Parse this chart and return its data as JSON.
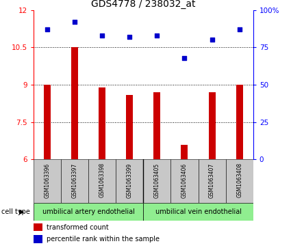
{
  "title": "GDS4778 / 238032_at",
  "samples": [
    "GSM1063396",
    "GSM1063397",
    "GSM1063398",
    "GSM1063399",
    "GSM1063405",
    "GSM1063406",
    "GSM1063407",
    "GSM1063408"
  ],
  "transformed_counts": [
    9.0,
    10.5,
    8.9,
    8.6,
    8.7,
    6.6,
    8.7,
    9.0
  ],
  "percentile_ranks": [
    87,
    92,
    83,
    82,
    83,
    68,
    80,
    87
  ],
  "ylim_left": [
    6,
    12
  ],
  "ylim_right": [
    0,
    100
  ],
  "yticks_left": [
    6,
    7.5,
    9,
    10.5,
    12
  ],
  "yticks_right": [
    0,
    25,
    50,
    75,
    100
  ],
  "ytick_labels_right": [
    "0",
    "25",
    "50",
    "75",
    "100%"
  ],
  "bar_color": "#cc0000",
  "scatter_color": "#0000cc",
  "bar_width": 0.25,
  "grid_dotted_values": [
    7.5,
    9.0,
    10.5
  ],
  "cell_type_groups": [
    {
      "label": "umbilical artery endothelial",
      "indices": [
        0,
        3
      ],
      "color": "#90ee90"
    },
    {
      "label": "umbilical vein endothelial",
      "indices": [
        4,
        7
      ],
      "color": "#90ee90"
    }
  ],
  "cell_type_label": "cell type",
  "legend_bar_label": "transformed count",
  "legend_scatter_label": "percentile rank within the sample",
  "sample_box_color": "#c8c8c8",
  "title_fontsize": 10,
  "tick_fontsize": 7.5,
  "sample_fontsize": 5.5,
  "celltype_fontsize": 7,
  "legend_fontsize": 7
}
